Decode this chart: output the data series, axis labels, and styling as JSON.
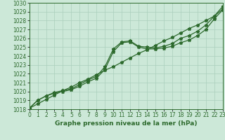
{
  "x": [
    0,
    1,
    2,
    3,
    4,
    5,
    6,
    7,
    8,
    9,
    10,
    11,
    12,
    13,
    14,
    15,
    16,
    17,
    18,
    19,
    20,
    21,
    22,
    23
  ],
  "line_straight": [
    1018.1,
    1018.6,
    1019.1,
    1019.6,
    1020.1,
    1020.5,
    1021.0,
    1021.4,
    1021.9,
    1022.4,
    1022.8,
    1023.3,
    1023.8,
    1024.3,
    1024.7,
    1025.2,
    1025.7,
    1026.1,
    1026.6,
    1027.1,
    1027.5,
    1028.0,
    1028.5,
    1029.3
  ],
  "line_mid": [
    1018.1,
    1019.0,
    1019.5,
    1019.8,
    1020.0,
    1020.2,
    1020.6,
    1021.1,
    1021.5,
    1022.5,
    1024.5,
    1025.5,
    1025.6,
    1025.0,
    1024.8,
    1024.8,
    1024.9,
    1025.1,
    1025.5,
    1025.8,
    1026.3,
    1027.0,
    1028.2,
    1029.2
  ],
  "line_top": [
    1018.1,
    1019.0,
    1019.5,
    1019.9,
    1020.1,
    1020.3,
    1020.8,
    1021.3,
    1021.7,
    1022.8,
    1024.8,
    1025.6,
    1025.7,
    1025.1,
    1025.0,
    1024.9,
    1025.1,
    1025.4,
    1026.0,
    1026.3,
    1026.8,
    1027.5,
    1028.5,
    1029.6
  ],
  "line_color": "#2d6a2d",
  "bg_color": "#cce8d8",
  "grid_color": "#aacfbc",
  "title": "Graphe pression niveau de la mer (hPa)",
  "xlim": [
    0,
    23
  ],
  "ylim": [
    1018,
    1030
  ],
  "yticks": [
    1018,
    1019,
    1020,
    1021,
    1022,
    1023,
    1024,
    1025,
    1026,
    1027,
    1028,
    1029,
    1030
  ],
  "xticks": [
    0,
    1,
    2,
    3,
    4,
    5,
    6,
    7,
    8,
    9,
    10,
    11,
    12,
    13,
    14,
    15,
    16,
    17,
    18,
    19,
    20,
    21,
    22,
    23
  ],
  "tick_fontsize": 5.5,
  "title_fontsize": 6.5
}
